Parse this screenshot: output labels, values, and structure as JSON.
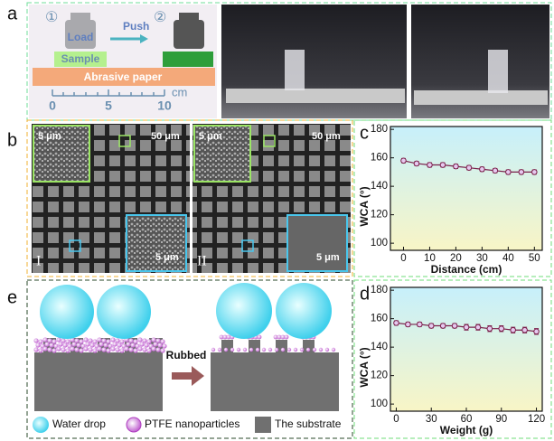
{
  "panel_labels": [
    "a",
    "b",
    "c",
    "d",
    "e"
  ],
  "schematic": {
    "step1": "①",
    "step2": "②",
    "load": "Load",
    "push": "Push",
    "sample": "Sample",
    "paper": "Abrasive paper",
    "unit": "cm",
    "ruler": [
      "0",
      "5",
      "10"
    ]
  },
  "sem": {
    "left": {
      "inset_top": "5 μm",
      "main": "50 μm",
      "inset_bottom": "5 μm",
      "label": "I"
    },
    "right": {
      "inset_top": "5 μm",
      "main": "50 μm",
      "inset_bottom": "5 μm",
      "label": "II"
    }
  },
  "schematic_e": {
    "arrow": "Rubbed",
    "legend": [
      "Water drop",
      "PTFE nanoparticles",
      "The substrate"
    ]
  },
  "chart_data": [
    {
      "type": "line",
      "x_label": "Distance (cm)",
      "y_label": "WCA (°)",
      "x": [
        0,
        5,
        10,
        15,
        20,
        25,
        30,
        35,
        40,
        45,
        50
      ],
      "values": [
        158,
        156,
        155,
        155,
        154,
        153,
        152,
        151,
        150,
        150,
        150
      ],
      "errors": [
        1.5,
        1.5,
        1.5,
        1.5,
        1.5,
        1.5,
        1.5,
        1.5,
        1.5,
        1.5,
        1.5
      ],
      "color": "#7a1f4a",
      "xlim": [
        -5,
        53
      ],
      "ylim": [
        95,
        182
      ],
      "xticks": [
        0,
        10,
        20,
        30,
        40,
        50
      ],
      "yticks": [
        100,
        120,
        140,
        160,
        180
      ]
    },
    {
      "type": "line",
      "x_label": "Weight (g)",
      "y_label": "WCA (°)",
      "x": [
        0,
        10,
        20,
        30,
        40,
        50,
        60,
        70,
        80,
        90,
        100,
        110,
        120
      ],
      "values": [
        157,
        156,
        156,
        155,
        155,
        155,
        154,
        154,
        153,
        153,
        152,
        152,
        151
      ],
      "errors": [
        1.5,
        1.5,
        1.5,
        1.5,
        1.5,
        1.5,
        2,
        2,
        2,
        2,
        2,
        2,
        2
      ],
      "color": "#7a1f4a",
      "xlim": [
        -5,
        125
      ],
      "ylim": [
        95,
        182
      ],
      "xticks": [
        0,
        30,
        60,
        90,
        120
      ],
      "yticks": [
        100,
        120,
        140,
        160,
        180
      ]
    }
  ]
}
